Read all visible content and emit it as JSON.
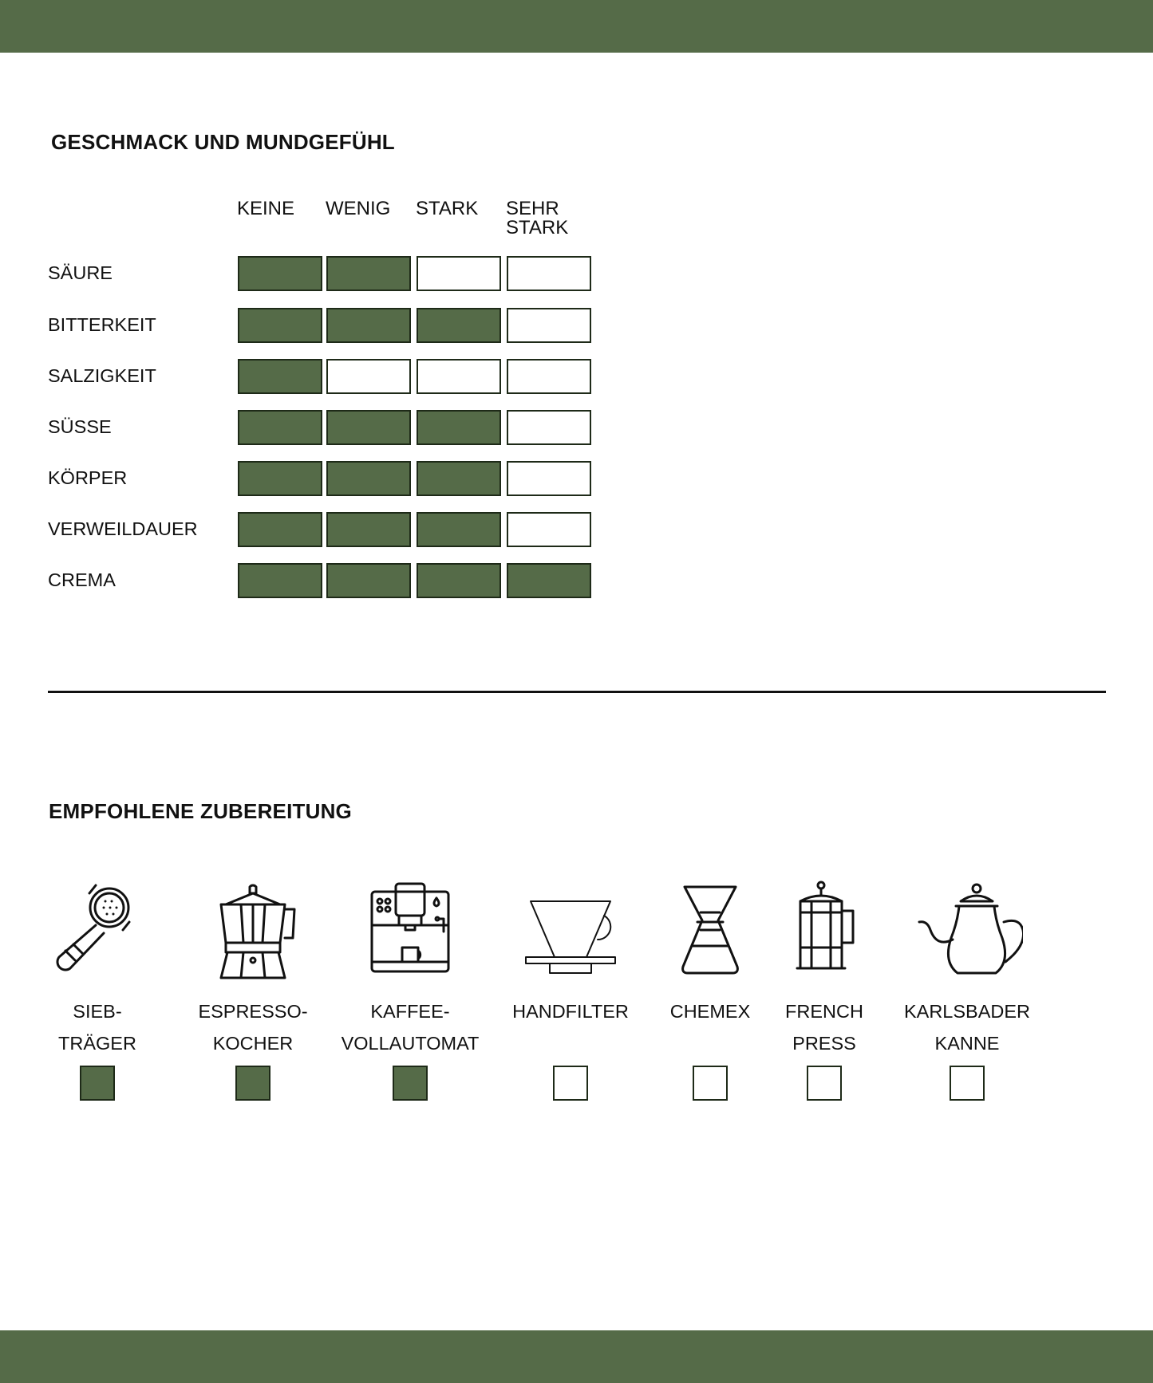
{
  "colors": {
    "accent": "#556b48",
    "border": "#1e2a18"
  },
  "taste": {
    "title": "GESCHMACK UND MUNDGEFÜHL",
    "columns": [
      "KEINE",
      "WENIG",
      "STARK",
      "SEHR\nSTARK"
    ],
    "rows": [
      {
        "label": "SÄURE",
        "level": 2
      },
      {
        "label": "BITTERKEIT",
        "level": 3
      },
      {
        "label": "SALZIGKEIT",
        "level": 1
      },
      {
        "label": "SÜSSE",
        "level": 3
      },
      {
        "label": "KÖRPER",
        "level": 3
      },
      {
        "label": "VERWEILDAUER",
        "level": 3
      },
      {
        "label": "CREMA",
        "level": 4
      }
    ]
  },
  "preparation": {
    "title": "EMPFOHLENE ZUBEREITUNG",
    "methods": [
      {
        "line1": "SIEB-",
        "line2": "TRÄGER",
        "icon": "portafilter-icon",
        "checked": true
      },
      {
        "line1": "ESPRESSO-",
        "line2": "KOCHER",
        "icon": "moka-pot-icon",
        "checked": true
      },
      {
        "line1": "KAFFEE-",
        "line2": "VOLLAUTOMAT",
        "icon": "coffee-machine-icon",
        "checked": true
      },
      {
        "line1": "HANDFILTER",
        "line2": "",
        "icon": "pour-over-icon",
        "checked": false
      },
      {
        "line1": "CHEMEX",
        "line2": "",
        "icon": "chemex-icon",
        "checked": false
      },
      {
        "line1": "FRENCH",
        "line2": "PRESS",
        "icon": "french-press-icon",
        "checked": false
      },
      {
        "line1": "KARLSBADER",
        "line2": "KANNE",
        "icon": "kettle-icon",
        "checked": false
      }
    ]
  }
}
